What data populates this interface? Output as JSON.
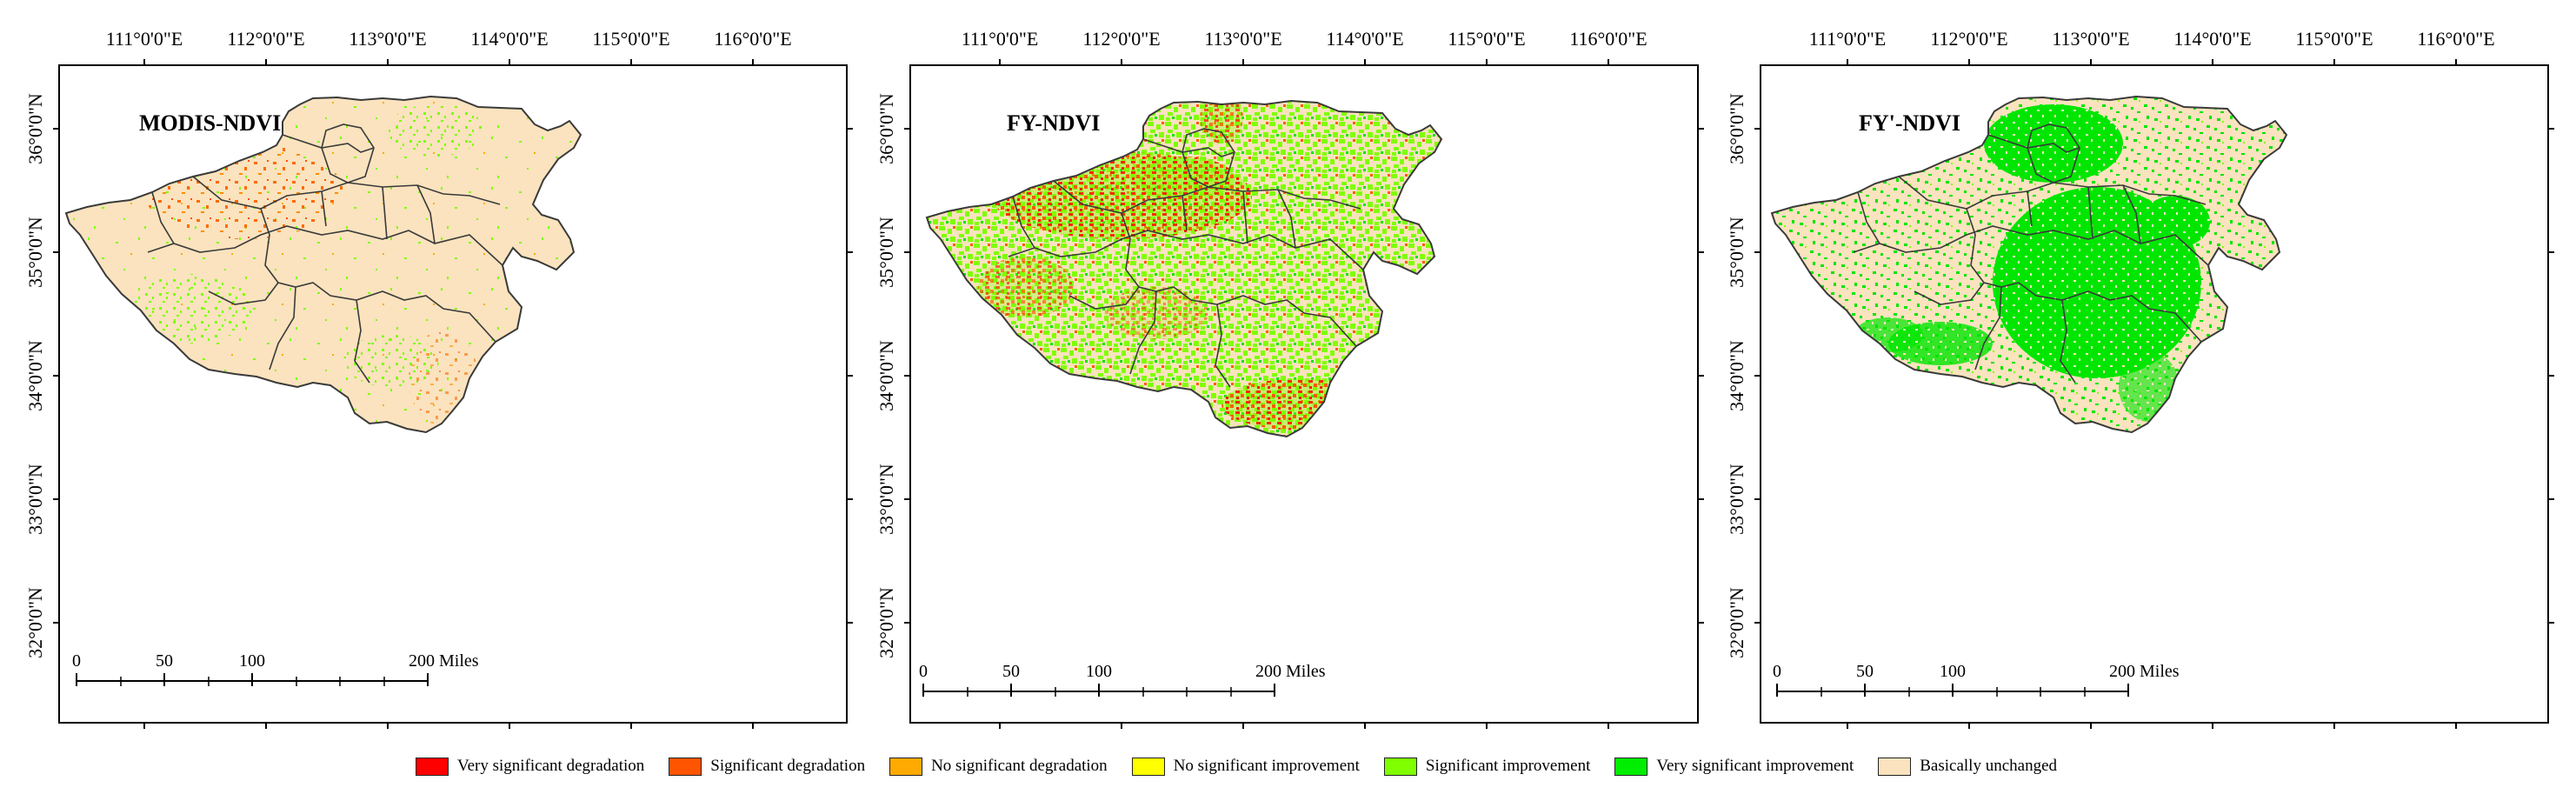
{
  "longitude_ticks": [
    "111°0'0\"E",
    "112°0'0\"E",
    "113°0'0\"E",
    "114°0'0\"E",
    "115°0'0\"E",
    "116°0'0\"E"
  ],
  "latitude_ticks": [
    "36°0'0\"N",
    "35°0'0\"N",
    "34°0'0\"N",
    "33°0'0\"N",
    "32°0'0\"N"
  ],
  "panels": [
    {
      "title": "MODIS-NDVI",
      "scale_labels": [
        "0",
        "50",
        "100",
        "200 Miles"
      ]
    },
    {
      "title": "FY-NDVI",
      "scale_labels": [
        "0",
        "50",
        "100",
        "200 Miles"
      ]
    },
    {
      "title": "FY'-NDVI",
      "scale_labels": [
        "0",
        "50",
        "100",
        "200 Miles"
      ]
    }
  ],
  "legend": [
    {
      "label": "Very significant degradation",
      "color": "#ff0000"
    },
    {
      "label": "Significant degradation",
      "color": "#ff5500"
    },
    {
      "label": "No significant degradation",
      "color": "#ffaa00"
    },
    {
      "label": "No significant improvement",
      "color": "#ffff00"
    },
    {
      "label": "Significant improvement",
      "color": "#80ff00"
    },
    {
      "label": "Very significant improvement",
      "color": "#00ee00"
    },
    {
      "label": "Basically unchanged",
      "color": "#fae3be"
    }
  ],
  "colors": {
    "basically_unchanged": "#fae3be",
    "significant_improvement": "#7cfc00",
    "very_significant_improvement": "#00e600",
    "significant_degradation": "#ff5a00",
    "very_significant_degradation": "#ff1a00",
    "no_significant_degradation": "#ffaa00",
    "boundary": "#3a3a3a"
  }
}
